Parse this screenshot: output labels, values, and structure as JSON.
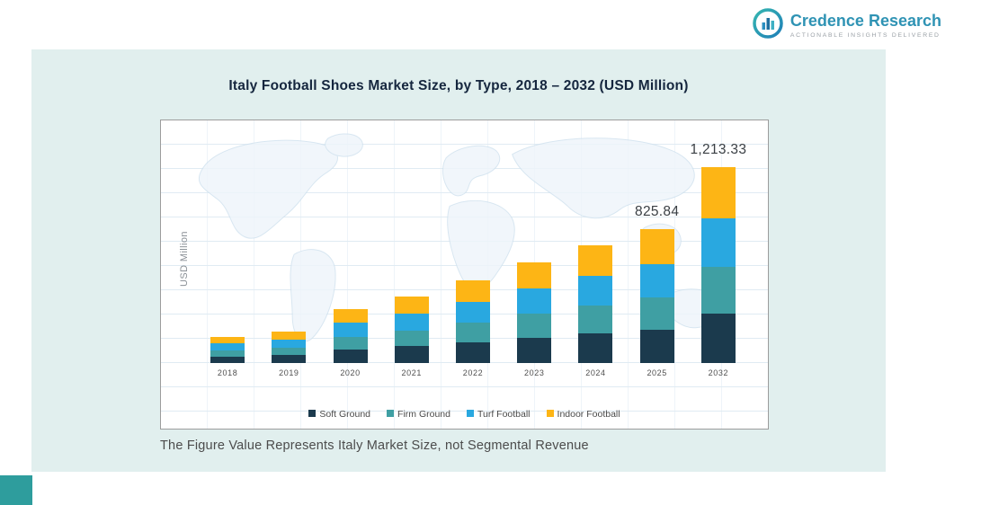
{
  "logo": {
    "name": "Credence Research",
    "tagline": "Actionable Insights Delivered"
  },
  "panel": {
    "title": "Italy Football Shoes Market Size, by Type, 2018 – 2032 (USD Million)",
    "footnote": "The Figure Value Represents Italy Market Size, not Segmental Revenue"
  },
  "colors": {
    "panel_background": "#e1efee",
    "corner_accent": "#2e9d9d",
    "title_text": "#15263e",
    "logo_blue": "#2f93b4"
  },
  "chart_data": {
    "type": "bar",
    "stacked": true,
    "title": "Italy Football Shoes Market Size, by Type, 2018 – 2032 (USD Million)",
    "xlabel": "",
    "ylabel": "USD Million",
    "ylim": [
      0,
      1500
    ],
    "grid": "map-background with faint graticule lines",
    "legend_position": "bottom",
    "categories": [
      "2018",
      "2019",
      "2020",
      "2021",
      "2022",
      "2023",
      "2024",
      "2025",
      "2032"
    ],
    "series": [
      {
        "name": "Soft Ground",
        "color": "#1b3a4d",
        "values": [
          41,
          49,
          84,
          103,
          128,
          156,
          182,
          205.84,
          303.33
        ]
      },
      {
        "name": "Firm Ground",
        "color": "#3f9fa3",
        "values": [
          39,
          47,
          80,
          99,
          123,
          150,
          174,
          198,
          291
        ]
      },
      {
        "name": "Turf Football",
        "color": "#29a8e0",
        "values": [
          41,
          49,
          84,
          103,
          128,
          156,
          182,
          207,
          303
        ]
      },
      {
        "name": "Indoor Football",
        "color": "#fdb515",
        "values": [
          42,
          52,
          86,
          106,
          134,
          163,
          189,
          215,
          316
        ]
      }
    ],
    "totals": [
      163,
      197,
      334,
      411,
      513,
      625,
      727,
      825.84,
      1213.33
    ],
    "annotations": [
      {
        "category": "2025",
        "text": "825.84"
      },
      {
        "category": "2032",
        "text": "1,213.33"
      }
    ]
  }
}
